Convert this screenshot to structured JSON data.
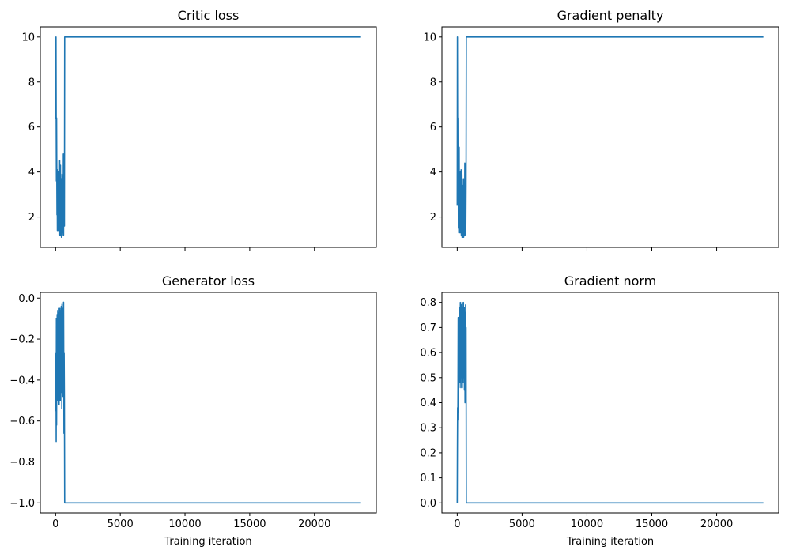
{
  "chart_data": [
    {
      "type": "line",
      "title": "Critic loss",
      "xlabel": "",
      "ylabel": "",
      "xlim": [
        -1180,
        24780
      ],
      "ylim": [
        0.65,
        10.45
      ],
      "xticks": [],
      "yticks": [
        2,
        4,
        6,
        8,
        10
      ],
      "ytick_labels": [
        "2",
        "4",
        "6",
        "8",
        "10"
      ],
      "grid": false,
      "color": "#1f77b4",
      "series": [
        {
          "x": [
            0,
            15,
            30,
            45,
            60,
            75,
            90,
            105,
            120,
            135,
            150,
            165,
            180,
            195,
            210,
            225,
            240,
            255,
            270,
            285,
            300,
            315,
            330,
            345,
            360,
            375,
            390,
            405,
            420,
            435,
            450,
            465,
            480,
            495,
            510,
            525,
            540,
            555,
            570,
            585,
            600,
            615,
            630,
            645,
            660,
            680,
            700,
            720,
            800,
            5000,
            10000,
            15000,
            20000,
            23600
          ],
          "y": [
            6.9,
            6.4,
            10.0,
            6.2,
            3.6,
            6.4,
            4.0,
            2.1,
            3.8,
            1.4,
            3.6,
            4.1,
            2.0,
            3.9,
            1.5,
            3.2,
            2.5,
            4.0,
            1.4,
            2.9,
            1.7,
            4.5,
            1.2,
            3.5,
            1.8,
            4.3,
            1.2,
            3.0,
            1.9,
            3.7,
            1.1,
            2.6,
            1.5,
            3.9,
            1.2,
            2.8,
            1.6,
            3.6,
            1.3,
            2.4,
            4.8,
            1.2,
            3.6,
            2.0,
            4.6,
            1.6,
            10.0,
            10.0,
            10.0,
            10.0,
            10.0,
            10.0,
            10.0,
            10.0
          ]
        }
      ]
    },
    {
      "type": "line",
      "title": "Gradient penalty",
      "xlabel": "",
      "ylabel": "",
      "xlim": [
        -1180,
        24780
      ],
      "ylim": [
        0.65,
        10.45
      ],
      "xticks": [],
      "yticks": [
        2,
        4,
        6,
        8,
        10
      ],
      "ytick_labels": [
        "2",
        "4",
        "6",
        "8",
        "10"
      ],
      "grid": false,
      "color": "#1f77b4",
      "series": [
        {
          "x": [
            0,
            15,
            30,
            45,
            60,
            75,
            90,
            105,
            120,
            135,
            150,
            165,
            180,
            195,
            210,
            225,
            240,
            255,
            270,
            285,
            300,
            315,
            330,
            345,
            360,
            375,
            390,
            405,
            420,
            435,
            450,
            465,
            480,
            495,
            510,
            525,
            540,
            555,
            570,
            585,
            600,
            615,
            630,
            645,
            660,
            680,
            700,
            720,
            800,
            5000,
            10000,
            15000,
            20000,
            23600
          ],
          "y": [
            2.5,
            10.0,
            5.8,
            6.4,
            3.0,
            5.2,
            1.5,
            4.6,
            1.3,
            3.3,
            5.1,
            1.8,
            3.6,
            1.3,
            3.1,
            2.2,
            4.0,
            1.3,
            2.8,
            1.6,
            4.1,
            1.2,
            3.3,
            1.7,
            3.9,
            1.1,
            2.8,
            1.8,
            3.4,
            1.1,
            2.5,
            1.4,
            3.7,
            1.1,
            2.6,
            1.5,
            3.3,
            1.2,
            2.2,
            4.4,
            1.2,
            3.3,
            1.9,
            4.2,
            1.5,
            3.4,
            10.0,
            10.0,
            10.0,
            10.0,
            10.0,
            10.0,
            10.0,
            10.0
          ]
        }
      ]
    },
    {
      "type": "line",
      "title": "Generator loss",
      "xlabel": "Training iteration",
      "ylabel": "",
      "xlim": [
        -1180,
        24780
      ],
      "ylim": [
        -1.049,
        0.028
      ],
      "xticks": [
        0,
        5000,
        10000,
        15000,
        20000
      ],
      "xtick_labels": [
        "0",
        "5000",
        "10000",
        "15000",
        "20000"
      ],
      "yticks": [
        -1.0,
        -0.8,
        -0.6,
        -0.4,
        -0.2,
        0.0
      ],
      "ytick_labels": [
        "−1.0",
        "−0.8",
        "−0.6",
        "−0.4",
        "−0.2",
        "0.0"
      ],
      "grid": false,
      "color": "#1f77b4",
      "series": [
        {
          "x": [
            0,
            15,
            30,
            45,
            60,
            75,
            90,
            105,
            120,
            135,
            150,
            165,
            180,
            195,
            210,
            225,
            240,
            255,
            270,
            285,
            300,
            315,
            330,
            345,
            360,
            375,
            390,
            405,
            420,
            435,
            450,
            465,
            480,
            495,
            510,
            525,
            540,
            555,
            570,
            585,
            600,
            615,
            630,
            645,
            660,
            680,
            700,
            720,
            800,
            5000,
            10000,
            15000,
            20000,
            23600
          ],
          "y": [
            -0.3,
            -0.55,
            -0.27,
            -0.7,
            -0.1,
            -0.62,
            -0.18,
            -0.45,
            -0.08,
            -0.5,
            -0.22,
            -0.06,
            -0.4,
            -0.12,
            -0.48,
            -0.05,
            -0.35,
            -0.15,
            -0.52,
            -0.07,
            -0.3,
            -0.44,
            -0.05,
            -0.28,
            -0.5,
            -0.06,
            -0.34,
            -0.2,
            -0.46,
            -0.04,
            -0.38,
            -0.1,
            -0.54,
            -0.03,
            -0.3,
            -0.16,
            -0.48,
            -0.05,
            -0.36,
            -0.24,
            -0.43,
            -0.02,
            -0.3,
            -0.66,
            -0.27,
            -0.5,
            -1.0,
            -1.0,
            -1.0,
            -1.0,
            -1.0,
            -1.0,
            -1.0,
            -1.0
          ]
        }
      ]
    },
    {
      "type": "line",
      "title": "Gradient norm",
      "xlabel": "Training iteration",
      "ylabel": "",
      "xlim": [
        -1180,
        24780
      ],
      "ylim": [
        -0.04,
        0.84
      ],
      "xticks": [
        0,
        5000,
        10000,
        15000,
        20000
      ],
      "xtick_labels": [
        "0",
        "5000",
        "10000",
        "15000",
        "20000"
      ],
      "yticks": [
        0.0,
        0.1,
        0.2,
        0.3,
        0.4,
        0.5,
        0.6,
        0.7,
        0.8
      ],
      "ytick_labels": [
        "0.0",
        "0.1",
        "0.2",
        "0.3",
        "0.4",
        "0.5",
        "0.6",
        "0.7",
        "0.8"
      ],
      "grid": false,
      "color": "#1f77b4",
      "series": [
        {
          "x": [
            0,
            15,
            30,
            45,
            60,
            75,
            90,
            105,
            120,
            135,
            150,
            165,
            180,
            195,
            210,
            225,
            240,
            255,
            270,
            285,
            300,
            315,
            330,
            345,
            360,
            375,
            390,
            405,
            420,
            435,
            450,
            465,
            480,
            495,
            510,
            525,
            540,
            555,
            570,
            585,
            600,
            615,
            630,
            645,
            660,
            680,
            700,
            720,
            800,
            5000,
            10000,
            15000,
            20000,
            23600
          ],
          "y": [
            0.0,
            0.22,
            0.38,
            0.33,
            0.48,
            0.74,
            0.36,
            0.5,
            0.72,
            0.46,
            0.62,
            0.78,
            0.5,
            0.7,
            0.48,
            0.64,
            0.8,
            0.52,
            0.74,
            0.46,
            0.68,
            0.79,
            0.5,
            0.72,
            0.58,
            0.8,
            0.46,
            0.7,
            0.52,
            0.78,
            0.48,
            0.66,
            0.8,
            0.5,
            0.72,
            0.56,
            0.78,
            0.45,
            0.68,
            0.76,
            0.4,
            0.73,
            0.55,
            0.79,
            0.47,
            0.7,
            0.0,
            0.0,
            0.0,
            0.0,
            0.0,
            0.0,
            0.0,
            0.0
          ]
        }
      ]
    }
  ]
}
